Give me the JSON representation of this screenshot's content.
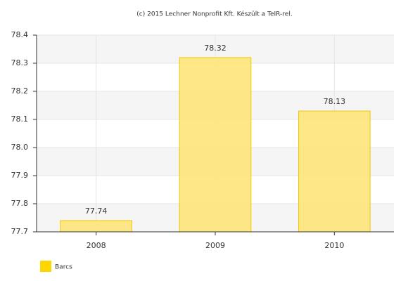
{
  "chart_data": {
    "type": "bar",
    "title": "(c) 2015 Lechner Nonprofit Kft. Készült a TeIR-rel.",
    "categories": [
      "2008",
      "2009",
      "2010"
    ],
    "series": [
      {
        "name": "Barcs",
        "color": "#fde47a",
        "values": [
          77.74,
          78.32,
          78.13
        ]
      }
    ],
    "ylim": [
      77.7,
      78.4
    ],
    "yticks": [
      77.7,
      77.8,
      77.9,
      {
        "value": 78,
        "label": "78.0"
      },
      78.1,
      78.2,
      78.3,
      78.4
    ],
    "grid": true
  }
}
